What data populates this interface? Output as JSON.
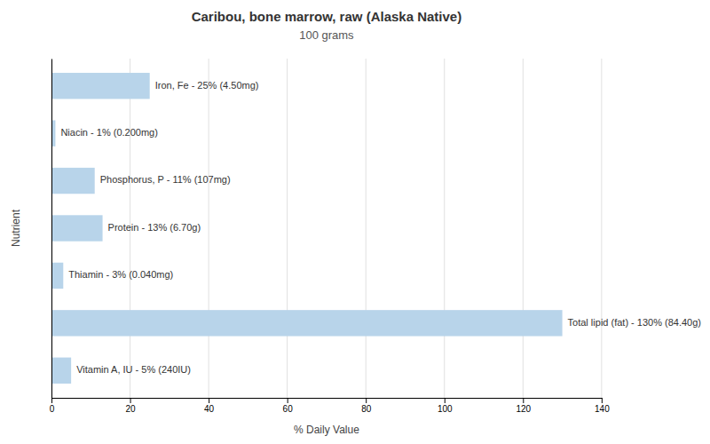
{
  "chart_data": {
    "type": "bar",
    "orientation": "horizontal",
    "title": "Caribou, bone marrow, raw (Alaska Native)",
    "subtitle": "100 grams",
    "xlabel": "% Daily Value",
    "ylabel": "Nutrient",
    "categories": [
      null,
      null,
      null,
      null,
      null,
      null,
      null
    ],
    "values": [
      25,
      1,
      11,
      13,
      3,
      130,
      5
    ],
    "value_labels": [
      "Iron, Fe - 25% (4.50mg)",
      "Niacin - 1% (0.200mg)",
      "Phosphorus, P - 11% (107mg)",
      "Protein - 13% (6.70g)",
      "Thiamin - 3% (0.040mg)",
      "Total lipid (fat) - 130% (84.40g)",
      "Vitamin A, IU - 5% (240IU)"
    ],
    "data_labels": true,
    "color": "#b8d4ea",
    "xlim": [
      0,
      140
    ],
    "xticks": [
      0,
      20,
      40,
      60,
      80,
      100,
      120,
      140
    ],
    "grid": true,
    "tick_labels": "x"
  }
}
